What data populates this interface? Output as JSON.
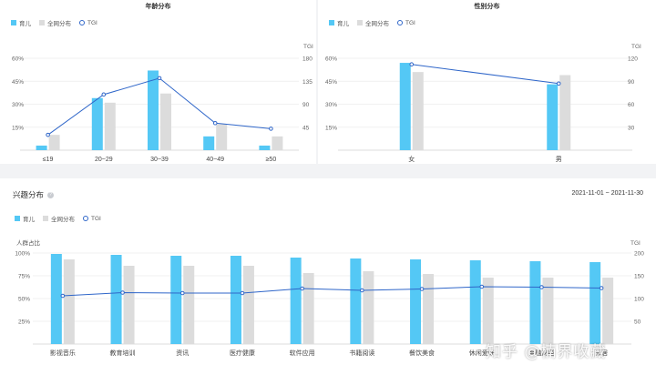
{
  "legend": {
    "series_a": "育儿",
    "series_b": "全网分布",
    "series_c": "TGI"
  },
  "colors": {
    "series_a": "#54c8f5",
    "series_b": "#dcdcdc",
    "tgi_line": "#2f66c9",
    "grid": "#ececec"
  },
  "age_panel": {
    "title": "年龄分布",
    "chart_data": {
      "type": "bar",
      "categories": [
        "≤19",
        "20~29",
        "30~39",
        "40~49",
        "≥50"
      ],
      "series": [
        {
          "name": "育儿",
          "values": [
            3,
            34,
            52,
            9,
            3
          ]
        },
        {
          "name": "全网分布",
          "values": [
            10,
            31,
            37,
            17,
            9
          ]
        }
      ],
      "line": {
        "name": "TGI",
        "values": [
          30,
          109,
          141,
          53,
          42
        ]
      },
      "ylim_left": [
        0,
        60
      ],
      "yticks_left": [
        "",
        "15%",
        "30%",
        "45%",
        "60%"
      ],
      "ylim_right": [
        0,
        180
      ],
      "yticks_right": [
        "",
        "45",
        "90",
        "135",
        "180"
      ],
      "right_axis_label": "TGI"
    }
  },
  "gender_panel": {
    "title": "性别分布",
    "chart_data": {
      "type": "bar",
      "categories": [
        "女",
        "男"
      ],
      "series": [
        {
          "name": "育儿",
          "values": [
            57,
            43
          ]
        },
        {
          "name": "全网分布",
          "values": [
            51,
            49
          ]
        }
      ],
      "line": {
        "name": "TGI",
        "values": [
          112,
          87
        ]
      },
      "ylim_left": [
        0,
        60
      ],
      "yticks_left": [
        "",
        "15%",
        "30%",
        "45%",
        "60%"
      ],
      "ylim_right": [
        0,
        120
      ],
      "yticks_right": [
        "",
        "30",
        "60",
        "90",
        "120"
      ],
      "right_axis_label": "TGI"
    }
  },
  "interest_panel": {
    "title": "兴趣分布",
    "date_range": "2021-11-01 ~ 2021-11-30",
    "chart_data": {
      "type": "bar",
      "categories": [
        "影视音乐",
        "教育培训",
        "资讯",
        "医疗健康",
        "软件应用",
        "书籍阅读",
        "餐饮美食",
        "休闲爱好",
        "金融财经",
        "家居"
      ],
      "series": [
        {
          "name": "育儿",
          "values": [
            99,
            98,
            97,
            97,
            95,
            94,
            93,
            92,
            91,
            90
          ]
        },
        {
          "name": "全网分布",
          "values": [
            93,
            86,
            86,
            86,
            78,
            80,
            77,
            73,
            73,
            73
          ]
        }
      ],
      "line": {
        "name": "TGI",
        "values": [
          106,
          113,
          112,
          112,
          122,
          118,
          121,
          126,
          125,
          123
        ]
      },
      "left_axis_label": "人群占比",
      "right_axis_label": "TGI",
      "ylim_left": [
        0,
        100
      ],
      "yticks_left": [
        "",
        "25%",
        "50%",
        "75%",
        "100%"
      ],
      "ylim_right": [
        0,
        200
      ],
      "yticks_right": [
        "",
        "50",
        "100",
        "150",
        "200"
      ]
    }
  },
  "watermark": "知乎 @楠界收藏"
}
